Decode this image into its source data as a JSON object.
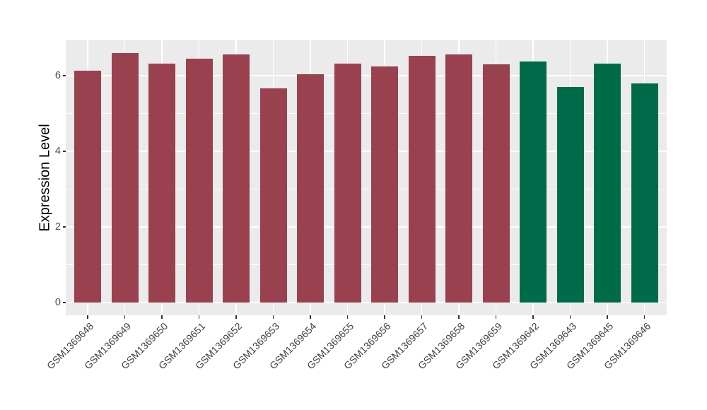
{
  "chart_data": {
    "type": "bar",
    "title": "",
    "xlabel": "",
    "ylabel": "Expression Level",
    "ylim": [
      0,
      6.93
    ],
    "yticks": [
      0,
      2,
      4,
      6
    ],
    "yticks_minor": [
      1,
      3,
      5
    ],
    "grid": "white major and minor horizontal lines, white vertical lines at each bar center, on light grey panel",
    "legend": "none",
    "categories": [
      "GSM1369648",
      "GSM1369649",
      "GSM1369650",
      "GSM1369651",
      "GSM1369652",
      "GSM1369653",
      "GSM1369654",
      "GSM1369655",
      "GSM1369656",
      "GSM1369657",
      "GSM1369658",
      "GSM1369659",
      "GSM1369642",
      "GSM1369643",
      "GSM1369645",
      "GSM1369646"
    ],
    "values": [
      6.13,
      6.6,
      6.32,
      6.44,
      6.57,
      5.67,
      6.04,
      6.32,
      6.25,
      6.52,
      6.57,
      6.29,
      6.37,
      5.7,
      6.32,
      5.8
    ],
    "bar_colors": [
      "#9A4150",
      "#9A4150",
      "#9A4150",
      "#9A4150",
      "#9A4150",
      "#9A4150",
      "#9A4150",
      "#9A4150",
      "#9A4150",
      "#9A4150",
      "#9A4150",
      "#9A4150",
      "#006B49",
      "#006B49",
      "#006B49",
      "#006B49"
    ]
  },
  "style": {
    "page_bg": "#FFFFFF",
    "panel_bg": "#EBEBEB",
    "grid_color": "#FFFFFF",
    "axis_text_color": "#4D4D4D",
    "axis_title_color": "#000000",
    "tick_color": "#333333",
    "group_color_left": "#9A4150",
    "group_color_right": "#006B49"
  }
}
